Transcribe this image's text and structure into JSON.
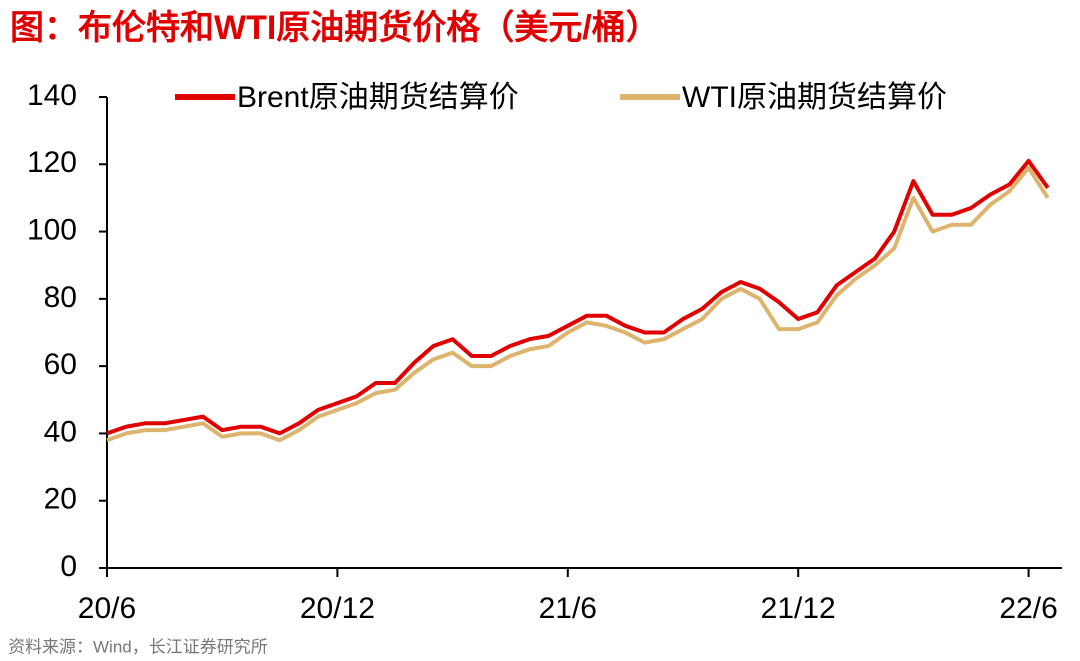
{
  "chart_data": {
    "type": "line",
    "title": "图：布伦特和WTI原油期货价格（美元/桶）",
    "source": "资料来源：Wind，长江证券研究所",
    "categories": [
      "20/6",
      null,
      null,
      null,
      null,
      null,
      null,
      null,
      null,
      null,
      null,
      null,
      "20/12",
      null,
      null,
      null,
      null,
      null,
      null,
      null,
      null,
      null,
      null,
      null,
      "21/6",
      null,
      null,
      null,
      null,
      null,
      null,
      null,
      null,
      null,
      null,
      null,
      "21/12",
      null,
      null,
      null,
      null,
      null,
      null,
      null,
      null,
      null,
      null,
      null,
      "22/6",
      null
    ],
    "series": [
      {
        "name": "Brent原油期货结算价",
        "color": "#e00000",
        "values": [
          40,
          42,
          43,
          43,
          44,
          45,
          41,
          42,
          42,
          40,
          43,
          47,
          49,
          51,
          55,
          55,
          61,
          66,
          68,
          63,
          63,
          66,
          68,
          69,
          72,
          75,
          75,
          72,
          70,
          70,
          74,
          77,
          82,
          85,
          83,
          79,
          74,
          76,
          84,
          88,
          92,
          100,
          115,
          105,
          105,
          107,
          111,
          114,
          121,
          113
        ]
      },
      {
        "name": "WTI原油期货结算价",
        "color": "#dcb46e",
        "values": [
          38,
          40,
          41,
          41,
          42,
          43,
          39,
          40,
          40,
          38,
          41,
          45,
          47,
          49,
          52,
          53,
          58,
          62,
          64,
          60,
          60,
          63,
          65,
          66,
          70,
          73,
          72,
          70,
          67,
          68,
          71,
          74,
          80,
          83,
          80,
          71,
          71,
          73,
          81,
          86,
          90,
          95,
          110,
          100,
          102,
          102,
          108,
          112,
          119,
          110
        ]
      }
    ],
    "ylim": [
      0,
      140
    ],
    "yticks": [
      0,
      20,
      40,
      60,
      80,
      100,
      120,
      140
    ]
  }
}
